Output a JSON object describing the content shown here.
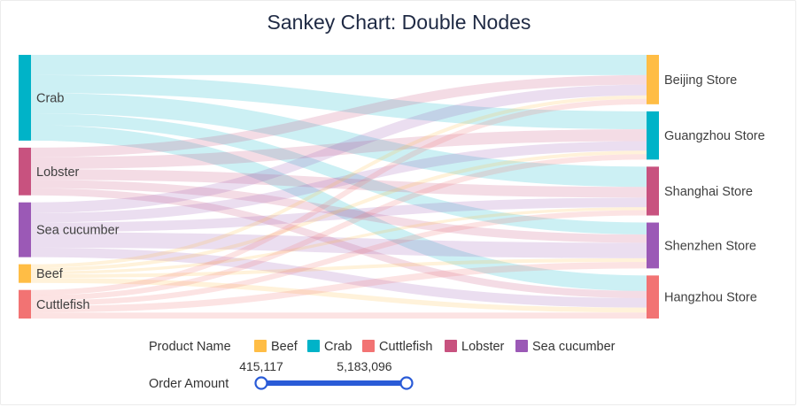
{
  "chart_data": {
    "type": "sankey",
    "title": "Sankey Chart: Double Nodes",
    "sources": [
      {
        "name": "Crab",
        "color": "#00b3c8"
      },
      {
        "name": "Lobster",
        "color": "#c8527f"
      },
      {
        "name": "Sea cucumber",
        "color": "#9b59b6"
      },
      {
        "name": "Beef",
        "color": "#ffbd45"
      },
      {
        "name": "Cuttlefish",
        "color": "#f27373"
      }
    ],
    "targets": [
      {
        "name": "Beijing Store",
        "color": "#ffbd45"
      },
      {
        "name": "Guangzhou Store",
        "color": "#00b3c8"
      },
      {
        "name": "Shanghai Store",
        "color": "#c8527f"
      },
      {
        "name": "Shenzhen Store",
        "color": "#9b59b6"
      },
      {
        "name": "Hangzhou Store",
        "color": "#f27373"
      }
    ],
    "links": [
      {
        "source": "Crab",
        "target": "Beijing Store",
        "value": 1700000
      },
      {
        "source": "Crab",
        "target": "Guangzhou Store",
        "value": 1500000
      },
      {
        "source": "Crab",
        "target": "Shanghai Store",
        "value": 1700000
      },
      {
        "source": "Crab",
        "target": "Shenzhen Store",
        "value": 1000000
      },
      {
        "source": "Crab",
        "target": "Hangzhou Store",
        "value": 1300000
      },
      {
        "source": "Lobster",
        "target": "Beijing Store",
        "value": 800000
      },
      {
        "source": "Lobster",
        "target": "Guangzhou Store",
        "value": 1000000
      },
      {
        "source": "Lobster",
        "target": "Shanghai Store",
        "value": 900000
      },
      {
        "source": "Lobster",
        "target": "Shenzhen Store",
        "value": 700000
      },
      {
        "source": "Lobster",
        "target": "Hangzhou Store",
        "value": 600000
      },
      {
        "source": "Sea cucumber",
        "target": "Beijing Store",
        "value": 900000
      },
      {
        "source": "Sea cucumber",
        "target": "Guangzhou Store",
        "value": 800000
      },
      {
        "source": "Sea cucumber",
        "target": "Shanghai Store",
        "value": 800000
      },
      {
        "source": "Sea cucumber",
        "target": "Shenzhen Store",
        "value": 1300000
      },
      {
        "source": "Sea cucumber",
        "target": "Hangzhou Store",
        "value": 800000
      },
      {
        "source": "Beef",
        "target": "Beijing Store",
        "value": 300000
      },
      {
        "source": "Beef",
        "target": "Guangzhou Store",
        "value": 300000
      },
      {
        "source": "Beef",
        "target": "Shanghai Store",
        "value": 250000
      },
      {
        "source": "Beef",
        "target": "Shenzhen Store",
        "value": 300000
      },
      {
        "source": "Beef",
        "target": "Hangzhou Store",
        "value": 415117
      },
      {
        "source": "Cuttlefish",
        "target": "Beijing Store",
        "value": 450000
      },
      {
        "source": "Cuttlefish",
        "target": "Guangzhou Store",
        "value": 450000
      },
      {
        "source": "Cuttlefish",
        "target": "Shanghai Store",
        "value": 450000
      },
      {
        "source": "Cuttlefish",
        "target": "Shenzhen Store",
        "value": 550000
      },
      {
        "source": "Cuttlefish",
        "target": "Hangzhou Store",
        "value": 500000
      }
    ],
    "legend": {
      "title": "Product Name",
      "items": [
        {
          "label": "Beef",
          "color": "#ffbd45"
        },
        {
          "label": "Crab",
          "color": "#00b3c8"
        },
        {
          "label": "Cuttlefish",
          "color": "#f27373"
        },
        {
          "label": "Lobster",
          "color": "#c8527f"
        },
        {
          "label": "Sea cucumber",
          "color": "#9b59b6"
        }
      ],
      "placement": "bottom"
    },
    "range_filter": {
      "title": "Order Amount",
      "min_label": "415,117",
      "max_label": "5,183,096",
      "min": 415117,
      "max": 5183096,
      "color": "#2a5bd7"
    }
  }
}
